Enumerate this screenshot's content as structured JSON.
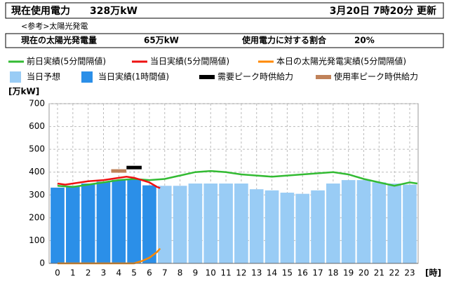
{
  "header": {
    "usage_label": "現在使用電力",
    "usage_value": "328万kW",
    "updated": "3月20日 7時20分 更新",
    "reference": "<参考>太陽光発電",
    "solar_label": "現在の太陽光発電量",
    "solar_value": "65万kW",
    "ratio_label": "使用電力に対する割合",
    "ratio_value": "20%"
  },
  "chart_data": {
    "type": "bar",
    "y_label": "[万kW]",
    "x_label": "[時]",
    "xlim": [
      -0.55,
      23.55
    ],
    "xticks": [
      0,
      1,
      2,
      3,
      4,
      5,
      6,
      7,
      8,
      9,
      10,
      11,
      12,
      13,
      14,
      15,
      16,
      17,
      18,
      19,
      20,
      21,
      22,
      23
    ],
    "ylim": [
      0,
      700
    ],
    "yticks": [
      0,
      100,
      200,
      300,
      400,
      500,
      600,
      700
    ],
    "grid": true,
    "series": [
      {
        "name": "前日実績(5分間隔値)",
        "type": "line",
        "color": "#33bb33",
        "x": [
          0,
          1,
          2,
          3,
          4,
          5,
          6,
          7,
          8,
          9,
          10,
          11,
          12,
          13,
          14,
          15,
          16,
          17,
          18,
          19,
          20,
          21,
          22,
          23,
          23.5
        ],
        "values": [
          340,
          335,
          345,
          355,
          365,
          370,
          365,
          370,
          385,
          400,
          405,
          400,
          390,
          385,
          380,
          385,
          390,
          395,
          400,
          390,
          370,
          355,
          340,
          355,
          350
        ]
      },
      {
        "name": "当日実績(5分間隔値)",
        "type": "line",
        "color": "#ee1111",
        "x": [
          0,
          0.5,
          1,
          1.5,
          2,
          3,
          4,
          4.5,
          5,
          5.5,
          6,
          6.5,
          6.7
        ],
        "values": [
          350,
          345,
          350,
          355,
          360,
          365,
          375,
          380,
          375,
          365,
          355,
          335,
          330
        ]
      },
      {
        "name": "本日の太陽光発電実績(5分間隔値)",
        "type": "line",
        "color": "#ff8800",
        "x": [
          0,
          1,
          2,
          3,
          4,
          5,
          5.5,
          6,
          6.5,
          6.7
        ],
        "values": [
          0,
          0,
          0,
          0,
          0,
          0,
          10,
          25,
          50,
          65
        ]
      },
      {
        "name": "当日予想",
        "type": "bar",
        "color": "#99ccf5",
        "x": [
          7,
          8,
          9,
          10,
          11,
          12,
          13,
          14,
          15,
          16,
          17,
          18,
          19,
          20,
          21,
          22,
          23
        ],
        "values": [
          340,
          340,
          350,
          350,
          350,
          350,
          325,
          320,
          310,
          305,
          320,
          350,
          365,
          365,
          355,
          350,
          345
        ]
      },
      {
        "name": "当日実績(1時間値)",
        "type": "bar",
        "color": "#2b8fe8",
        "x": [
          0,
          1,
          2,
          3,
          4,
          5,
          6
        ],
        "values": [
          332,
          340,
          350,
          358,
          366,
          370,
          342
        ]
      },
      {
        "name": "需要ピーク時供給力",
        "type": "marker",
        "color": "#000000",
        "x": [
          5
        ],
        "values": [
          420
        ]
      },
      {
        "name": "使用率ピーク時供給力",
        "type": "marker",
        "color": "#c0825a",
        "x": [
          4
        ],
        "values": [
          405
        ]
      }
    ]
  }
}
